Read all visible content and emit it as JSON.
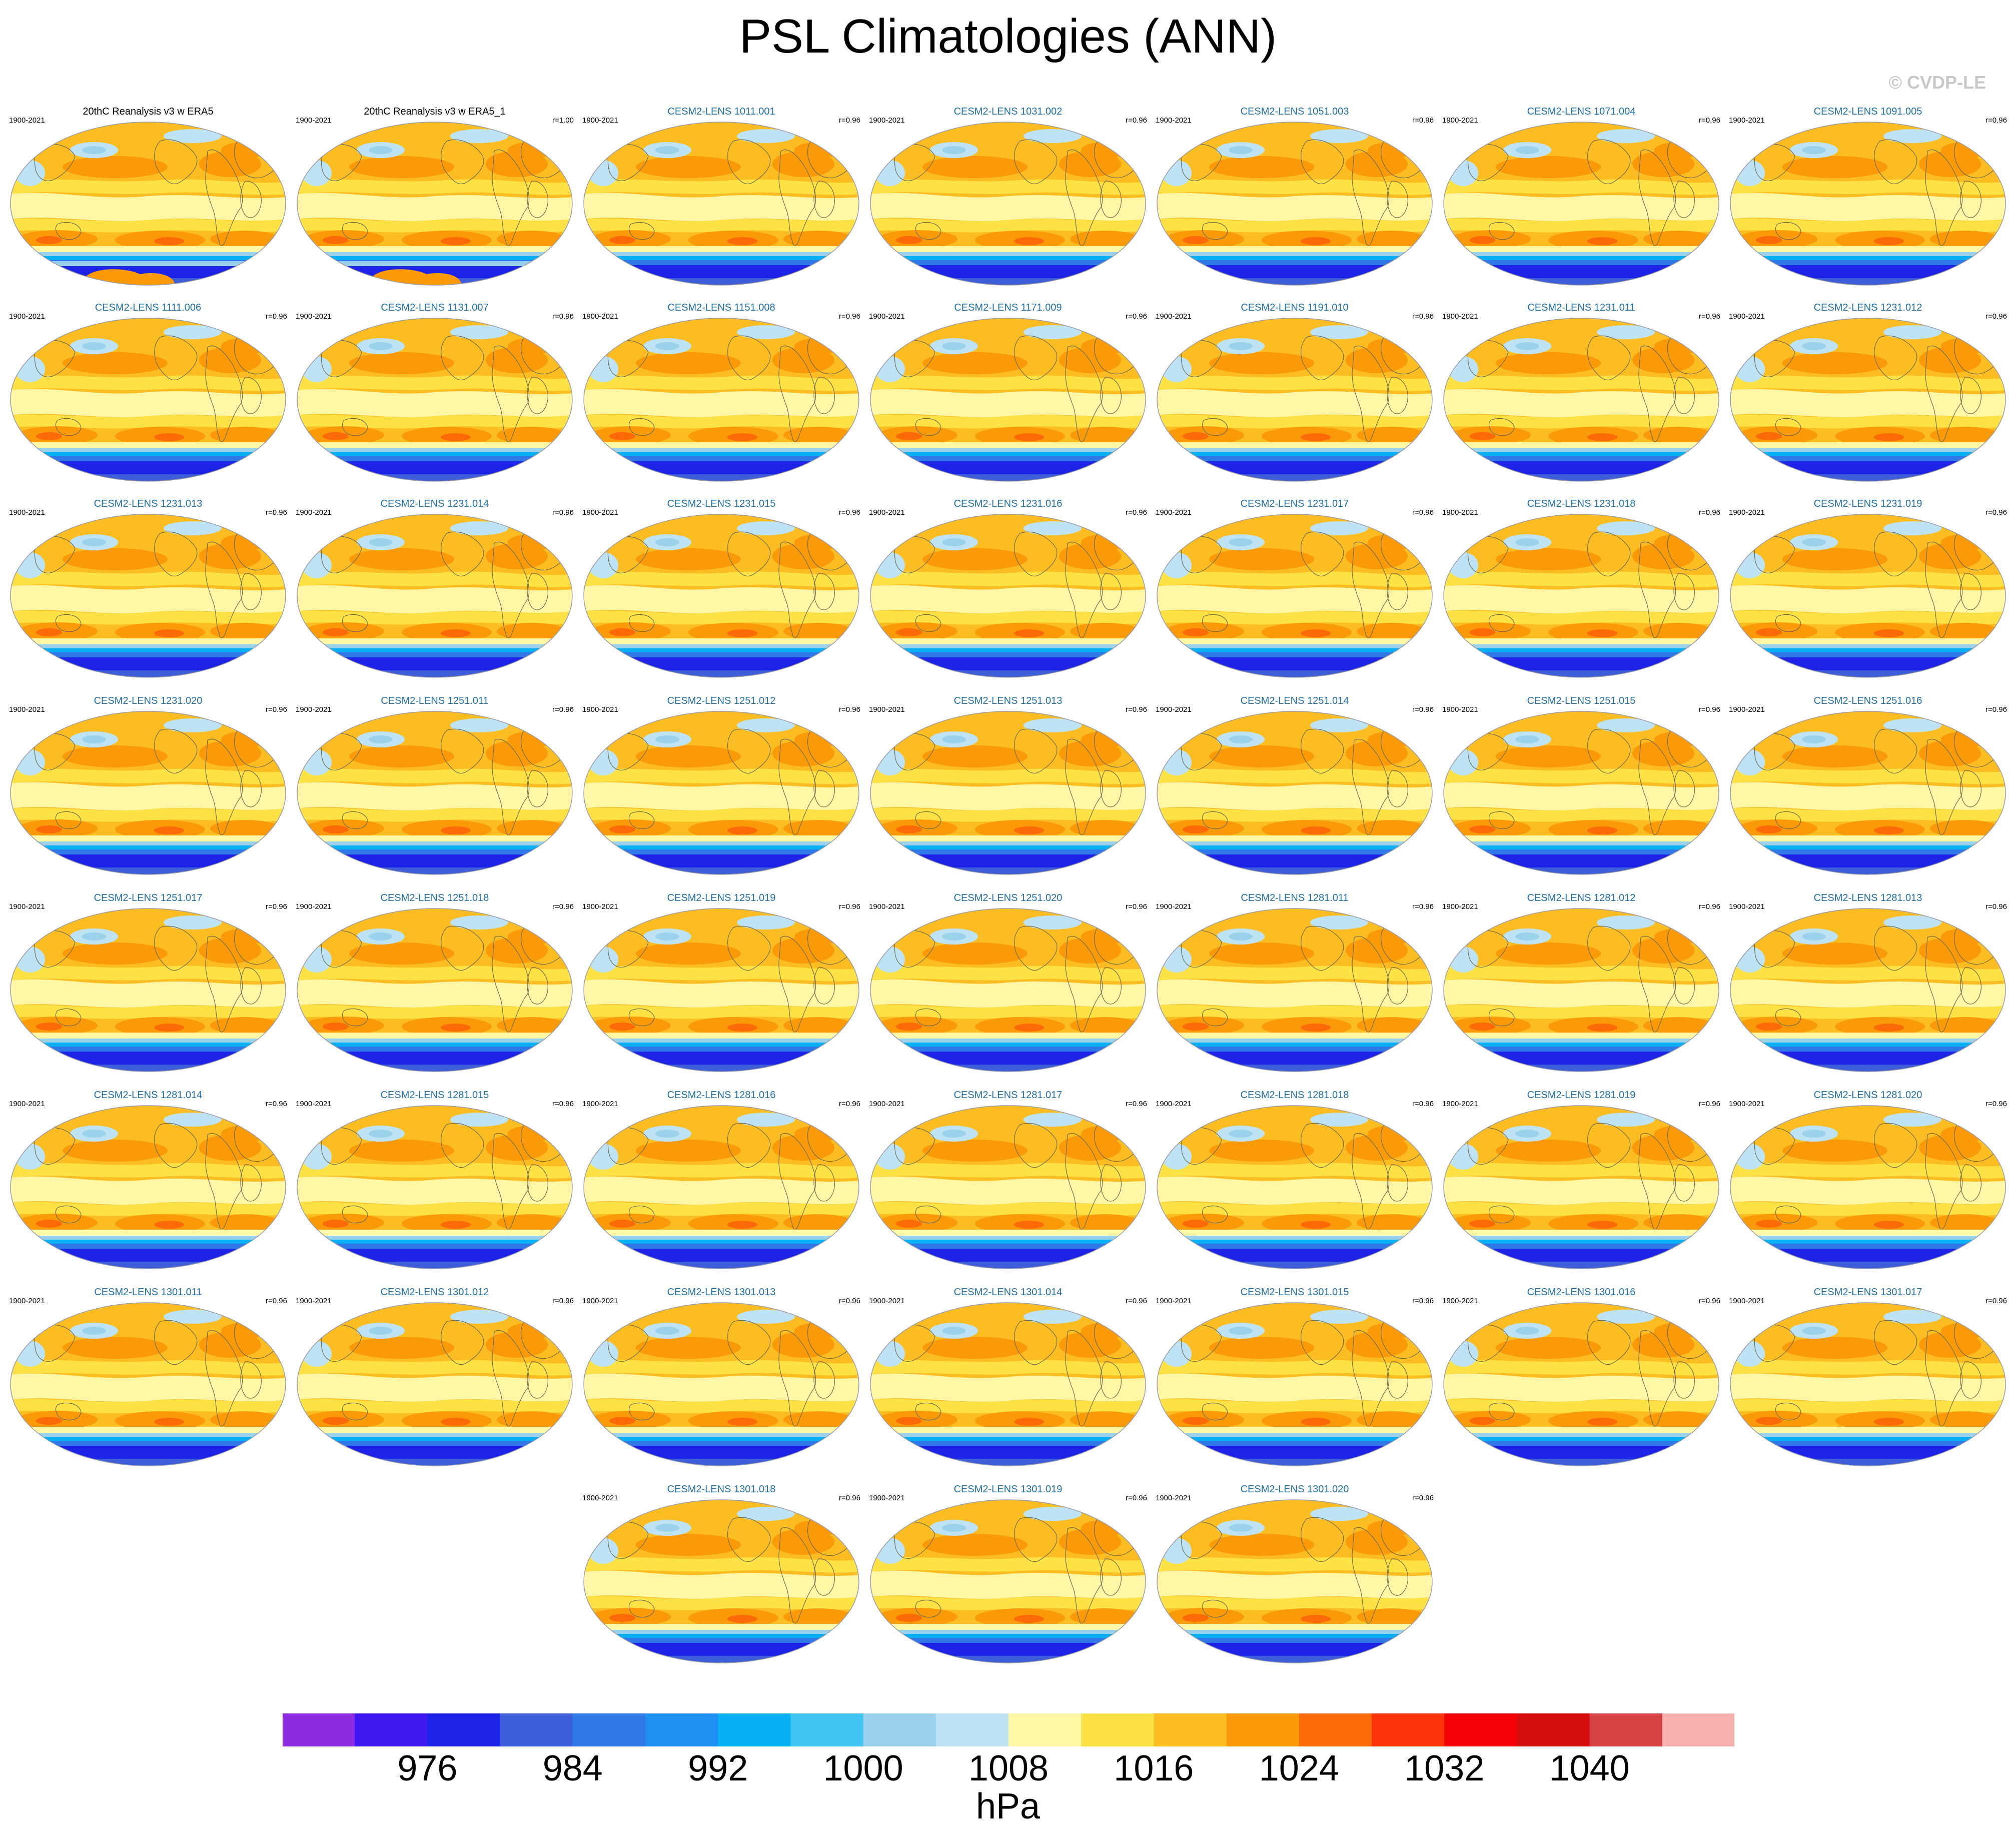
{
  "title": "PSL Climatologies (ANN)",
  "copyright": "© CVDP-LE",
  "chart_data": {
    "type": "heatmap",
    "variable": "PSL",
    "season": "ANN",
    "units": "hPa",
    "period": "1900-2021",
    "reference": "20thC Reanalysis v3 w ERA5",
    "colorbar": {
      "levels": [
        972,
        976,
        980,
        984,
        988,
        992,
        996,
        1000,
        1004,
        1008,
        1012,
        1016,
        1020,
        1024,
        1028,
        1032,
        1036,
        1040,
        1044
      ],
      "tick_labels": [
        "976",
        "984",
        "992",
        "1000",
        "1008",
        "1016",
        "1024",
        "1032",
        "1040"
      ],
      "colors": [
        "#8a2be2",
        "#3f17f0",
        "#1c22e6",
        "#3d5ed8",
        "#2f78e8",
        "#1f8ff2",
        "#06b0f2",
        "#40c2f2",
        "#9ad2ec",
        "#bde3f4",
        "#fff7a6",
        "#fde245",
        "#fbbd22",
        "#fb9a08",
        "#fb6a07",
        "#fa3309",
        "#f40105",
        "#d40d0d",
        "#d64344",
        "#f9b1b0"
      ],
      "units_label": "hPa"
    },
    "panels": [
      {
        "title": "20thC Reanalysis v3 w ERA5",
        "left": "1900-2021",
        "right": "",
        "obs": true
      },
      {
        "title": "20thC Reanalysis v3 w ERA5_1",
        "left": "1900-2021",
        "right": "r=1.00",
        "obs": true
      },
      {
        "title": "CESM2-LENS 1011.001",
        "left": "1900-2021",
        "right": "r=0.96"
      },
      {
        "title": "CESM2-LENS 1031.002",
        "left": "1900-2021",
        "right": "r=0.96"
      },
      {
        "title": "CESM2-LENS 1051.003",
        "left": "1900-2021",
        "right": "r=0.96"
      },
      {
        "title": "CESM2-LENS 1071.004",
        "left": "1900-2021",
        "right": "r=0.96"
      },
      {
        "title": "CESM2-LENS 1091.005",
        "left": "1900-2021",
        "right": "r=0.96"
      },
      {
        "title": "CESM2-LENS 1111.006",
        "left": "1900-2021",
        "right": "r=0.96"
      },
      {
        "title": "CESM2-LENS 1131.007",
        "left": "1900-2021",
        "right": "r=0.96"
      },
      {
        "title": "CESM2-LENS 1151.008",
        "left": "1900-2021",
        "right": "r=0.96"
      },
      {
        "title": "CESM2-LENS 1171.009",
        "left": "1900-2021",
        "right": "r=0.96"
      },
      {
        "title": "CESM2-LENS 1191.010",
        "left": "1900-2021",
        "right": "r=0.96"
      },
      {
        "title": "CESM2-LENS 1231.011",
        "left": "1900-2021",
        "right": "r=0.96"
      },
      {
        "title": "CESM2-LENS 1231.012",
        "left": "1900-2021",
        "right": "r=0.96"
      },
      {
        "title": "CESM2-LENS 1231.013",
        "left": "1900-2021",
        "right": "r=0.96"
      },
      {
        "title": "CESM2-LENS 1231.014",
        "left": "1900-2021",
        "right": "r=0.96"
      },
      {
        "title": "CESM2-LENS 1231.015",
        "left": "1900-2021",
        "right": "r=0.96"
      },
      {
        "title": "CESM2-LENS 1231.016",
        "left": "1900-2021",
        "right": "r=0.96"
      },
      {
        "title": "CESM2-LENS 1231.017",
        "left": "1900-2021",
        "right": "r=0.96"
      },
      {
        "title": "CESM2-LENS 1231.018",
        "left": "1900-2021",
        "right": "r=0.96"
      },
      {
        "title": "CESM2-LENS 1231.019",
        "left": "1900-2021",
        "right": "r=0.96"
      },
      {
        "title": "CESM2-LENS 1231.020",
        "left": "1900-2021",
        "right": "r=0.96"
      },
      {
        "title": "CESM2-LENS 1251.011",
        "left": "1900-2021",
        "right": "r=0.96"
      },
      {
        "title": "CESM2-LENS 1251.012",
        "left": "1900-2021",
        "right": "r=0.96"
      },
      {
        "title": "CESM2-LENS 1251.013",
        "left": "1900-2021",
        "right": "r=0.96"
      },
      {
        "title": "CESM2-LENS 1251.014",
        "left": "1900-2021",
        "right": "r=0.96"
      },
      {
        "title": "CESM2-LENS 1251.015",
        "left": "1900-2021",
        "right": "r=0.96"
      },
      {
        "title": "CESM2-LENS 1251.016",
        "left": "1900-2021",
        "right": "r=0.96"
      },
      {
        "title": "CESM2-LENS 1251.017",
        "left": "1900-2021",
        "right": "r=0.96"
      },
      {
        "title": "CESM2-LENS 1251.018",
        "left": "1900-2021",
        "right": "r=0.96"
      },
      {
        "title": "CESM2-LENS 1251.019",
        "left": "1900-2021",
        "right": "r=0.96"
      },
      {
        "title": "CESM2-LENS 1251.020",
        "left": "1900-2021",
        "right": "r=0.96"
      },
      {
        "title": "CESM2-LENS 1281.011",
        "left": "1900-2021",
        "right": "r=0.96"
      },
      {
        "title": "CESM2-LENS 1281.012",
        "left": "1900-2021",
        "right": "r=0.96"
      },
      {
        "title": "CESM2-LENS 1281.013",
        "left": "1900-2021",
        "right": "r=0.96"
      },
      {
        "title": "CESM2-LENS 1281.014",
        "left": "1900-2021",
        "right": "r=0.96"
      },
      {
        "title": "CESM2-LENS 1281.015",
        "left": "1900-2021",
        "right": "r=0.96"
      },
      {
        "title": "CESM2-LENS 1281.016",
        "left": "1900-2021",
        "right": "r=0.96"
      },
      {
        "title": "CESM2-LENS 1281.017",
        "left": "1900-2021",
        "right": "r=0.96"
      },
      {
        "title": "CESM2-LENS 1281.018",
        "left": "1900-2021",
        "right": "r=0.96"
      },
      {
        "title": "CESM2-LENS 1281.019",
        "left": "1900-2021",
        "right": "r=0.96"
      },
      {
        "title": "CESM2-LENS 1281.020",
        "left": "1900-2021",
        "right": "r=0.96"
      },
      {
        "title": "CESM2-LENS 1301.011",
        "left": "1900-2021",
        "right": "r=0.96"
      },
      {
        "title": "CESM2-LENS 1301.012",
        "left": "1900-2021",
        "right": "r=0.96"
      },
      {
        "title": "CESM2-LENS 1301.013",
        "left": "1900-2021",
        "right": "r=0.96"
      },
      {
        "title": "CESM2-LENS 1301.014",
        "left": "1900-2021",
        "right": "r=0.96"
      },
      {
        "title": "CESM2-LENS 1301.015",
        "left": "1900-2021",
        "right": "r=0.96"
      },
      {
        "title": "CESM2-LENS 1301.016",
        "left": "1900-2021",
        "right": "r=0.96"
      },
      {
        "title": "CESM2-LENS 1301.017",
        "left": "1900-2021",
        "right": "r=0.96"
      },
      {
        "title": "CESM2-LENS 1301.018",
        "left": "1900-2021",
        "right": "r=0.96"
      },
      {
        "title": "CESM2-LENS 1301.019",
        "left": "1900-2021",
        "right": "r=0.96"
      },
      {
        "title": "CESM2-LENS 1301.020",
        "left": "1900-2021",
        "right": "r=0.96"
      }
    ]
  }
}
